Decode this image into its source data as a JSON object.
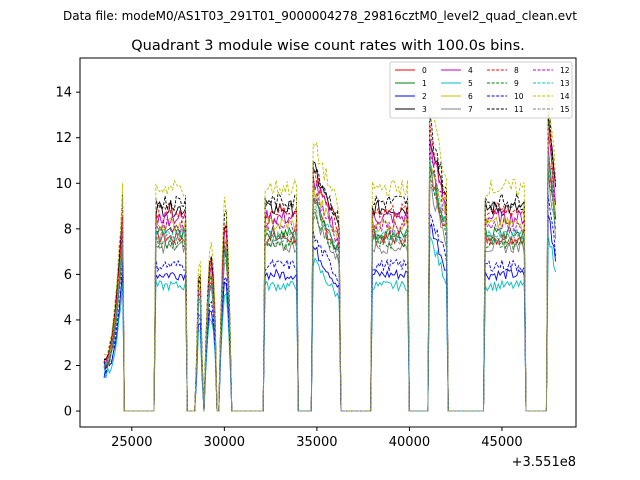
{
  "header": {
    "suptitle": "Data file: modeM0/AS1T03_291T01_9000004278_29816cztM0_level2_quad_clean.evt"
  },
  "chart_data": {
    "type": "line",
    "title": "Quadrant 3 module wise count rates with 100.0s bins.",
    "xlabel": "",
    "ylabel": "",
    "x_offset_label": "+3.551e8",
    "xlim": [
      22200,
      49000
    ],
    "ylim": [
      -0.7,
      15.5
    ],
    "xticks": [
      25000,
      30000,
      35000,
      40000,
      45000
    ],
    "xtick_labels": [
      "25000",
      "30000",
      "35000",
      "40000",
      "45000"
    ],
    "yticks": [
      0,
      2,
      4,
      6,
      8,
      10,
      12,
      14
    ],
    "ytick_labels": [
      "0",
      "2",
      "4",
      "6",
      "8",
      "10",
      "12",
      "14"
    ],
    "grid": false,
    "legend_position": "top-right",
    "segments": [
      {
        "start": 23500,
        "end": 24500,
        "level": 1.0,
        "shape": "ramp"
      },
      {
        "start": 26300,
        "end": 27900,
        "level": 1.0,
        "shape": "flat"
      },
      {
        "start": 28500,
        "end": 28800,
        "level": 0.85,
        "shape": "spike"
      },
      {
        "start": 29000,
        "end": 29550,
        "level": 0.75,
        "shape": "bump"
      },
      {
        "start": 29800,
        "end": 30300,
        "level": 0.95,
        "shape": "bump"
      },
      {
        "start": 32200,
        "end": 33900,
        "level": 1.0,
        "shape": "flat"
      },
      {
        "start": 34800,
        "end": 36200,
        "level": 1.2,
        "shape": "decay"
      },
      {
        "start": 38000,
        "end": 39900,
        "level": 1.0,
        "shape": "flat"
      },
      {
        "start": 41100,
        "end": 42000,
        "level": 1.38,
        "shape": "decay"
      },
      {
        "start": 44100,
        "end": 46200,
        "level": 1.0,
        "shape": "flat"
      },
      {
        "start": 47500,
        "end": 47900,
        "level": 1.45,
        "shape": "decay"
      }
    ],
    "series": [
      {
        "name": "0",
        "color": "#ff0000",
        "dash": "solid",
        "base": 7.6
      },
      {
        "name": "1",
        "color": "#008000",
        "dash": "solid",
        "base": 7.8
      },
      {
        "name": "2",
        "color": "#0000ff",
        "dash": "solid",
        "base": 6.0
      },
      {
        "name": "3",
        "color": "#000000",
        "dash": "solid",
        "base": 8.9
      },
      {
        "name": "4",
        "color": "#bf00bf",
        "dash": "solid",
        "base": 8.5
      },
      {
        "name": "5",
        "color": "#00bfbf",
        "dash": "solid",
        "base": 5.5
      },
      {
        "name": "6",
        "color": "#bfbf00",
        "dash": "solid",
        "base": 8.2
      },
      {
        "name": "7",
        "color": "#808080",
        "dash": "solid",
        "base": 7.2
      },
      {
        "name": "8",
        "color": "#ff0000",
        "dash": "dashed",
        "base": 8.8
      },
      {
        "name": "9",
        "color": "#008000",
        "dash": "dashed",
        "base": 7.4
      },
      {
        "name": "10",
        "color": "#0000ff",
        "dash": "dashed",
        "base": 6.4
      },
      {
        "name": "11",
        "color": "#000000",
        "dash": "dashed",
        "base": 9.2
      },
      {
        "name": "12",
        "color": "#bf00bf",
        "dash": "dashed",
        "base": 8.1
      },
      {
        "name": "13",
        "color": "#00bfbf",
        "dash": "dashed",
        "base": 7.7
      },
      {
        "name": "14",
        "color": "#bfbf00",
        "dash": "dashed",
        "base": 9.8
      },
      {
        "name": "15",
        "color": "#808080",
        "dash": "dashed",
        "base": 7.6
      }
    ]
  }
}
